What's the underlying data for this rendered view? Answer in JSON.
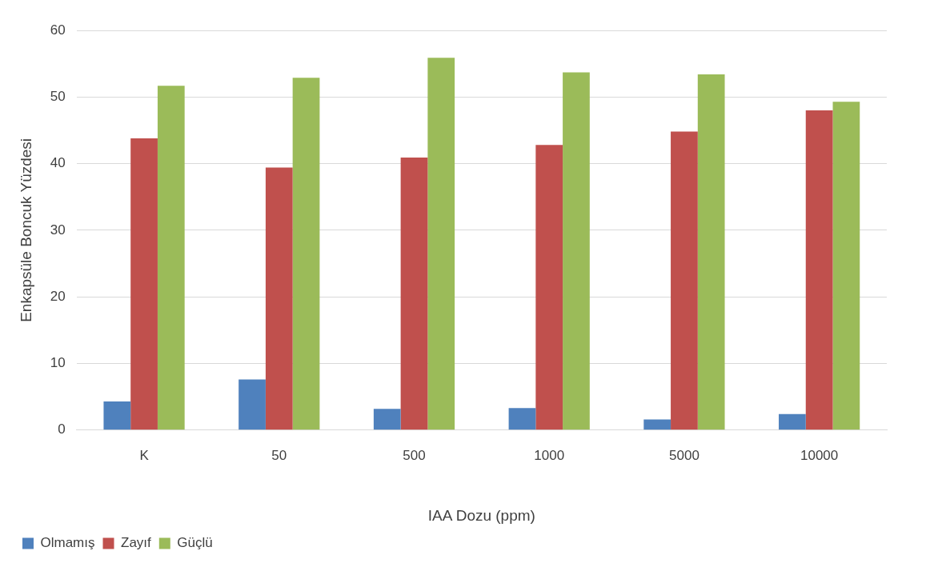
{
  "chart_data": {
    "type": "bar",
    "xlabel": "IAA Dozu (ppm)",
    "ylabel": "Enkapsüle Boncuk Yüzdesi",
    "categories": [
      "K",
      "50",
      "500",
      "1000",
      "5000",
      "10000"
    ],
    "series": [
      {
        "name": "Olmamış",
        "color": "#4f81bd",
        "values": [
          4.3,
          7.6,
          3.2,
          3.3,
          1.6,
          2.4
        ]
      },
      {
        "name": "Zayıf",
        "color": "#c0504d",
        "values": [
          43.8,
          39.4,
          40.9,
          42.8,
          44.8,
          48
        ]
      },
      {
        "name": "Güçlü",
        "color": "#9bbb59",
        "values": [
          51.7,
          52.9,
          55.9,
          53.7,
          53.4,
          49.3
        ]
      }
    ],
    "ylim": [
      0,
      60
    ],
    "yticks": [
      0,
      10,
      20,
      30,
      40,
      50,
      60
    ],
    "grid": "y",
    "legend": "bottom left"
  }
}
